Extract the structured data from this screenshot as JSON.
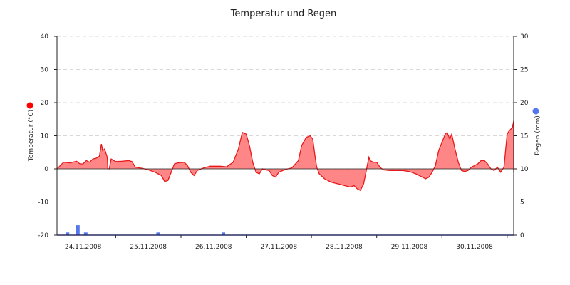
{
  "colors": {
    "temperature_line": "#e8191a",
    "temperature_fill": "#ff8080",
    "temperature_marker": "#ff0000",
    "rain_bar": "#5577ee",
    "rain_marker": "#5577ee",
    "baseline": "#2b2f66",
    "grid": "#d9d9d9"
  },
  "icons": {
    "temperature_legend": "red-dot-icon",
    "rain_legend": "blue-dot-icon"
  },
  "chart_data": {
    "type": "line",
    "title": "Temperatur und Regen",
    "xlabel": "",
    "ylabel": "Temperatur (°C)",
    "ylabel_right": "Regen (mm)",
    "ylim": [
      -20,
      40
    ],
    "ylim_right": [
      0,
      30
    ],
    "yticks": [
      "40",
      "30",
      "20",
      "10",
      "0",
      "-10",
      "-20"
    ],
    "yticks_right": [
      "30",
      "25",
      "20",
      "15",
      "10",
      "5",
      "0"
    ],
    "xlim_days": [
      -0.4,
      6.6
    ],
    "x_tick_labels": [
      "24.11.2008",
      "25.11.2008",
      "26.11.2008",
      "27.11.2008",
      "28.11.2008",
      "29.11.2008",
      "30.11.2008"
    ],
    "grid": true,
    "series": [
      {
        "name": "Temperatur (°C)",
        "kind": "area",
        "points": [
          [
            -0.4,
            0.0
          ],
          [
            -0.35,
            1.0
          ],
          [
            -0.3,
            2.0
          ],
          [
            -0.2,
            1.8
          ],
          [
            -0.1,
            2.3
          ],
          [
            -0.05,
            1.5
          ],
          [
            0.0,
            1.5
          ],
          [
            0.05,
            2.5
          ],
          [
            0.1,
            2.0
          ],
          [
            0.15,
            3.0
          ],
          [
            0.2,
            3.2
          ],
          [
            0.25,
            3.8
          ],
          [
            0.28,
            7.5
          ],
          [
            0.3,
            5.5
          ],
          [
            0.33,
            6.0
          ],
          [
            0.37,
            3.5
          ],
          [
            0.38,
            0.0
          ],
          [
            0.4,
            0.0
          ],
          [
            0.43,
            3.0
          ],
          [
            0.5,
            2.2
          ],
          [
            0.6,
            2.3
          ],
          [
            0.7,
            2.5
          ],
          [
            0.75,
            2.2
          ],
          [
            0.8,
            0.5
          ],
          [
            0.9,
            0.2
          ],
          [
            1.0,
            -0.3
          ],
          [
            1.1,
            -1.0
          ],
          [
            1.2,
            -2.0
          ],
          [
            1.25,
            -3.8
          ],
          [
            1.3,
            -3.5
          ],
          [
            1.35,
            -1.0
          ],
          [
            1.4,
            1.5
          ],
          [
            1.45,
            1.8
          ],
          [
            1.55,
            2.0
          ],
          [
            1.6,
            1.0
          ],
          [
            1.65,
            -1.0
          ],
          [
            1.7,
            -2.0
          ],
          [
            1.75,
            -0.5
          ],
          [
            1.85,
            0.3
          ],
          [
            1.95,
            0.8
          ],
          [
            2.1,
            0.8
          ],
          [
            2.2,
            0.6
          ],
          [
            2.3,
            2.0
          ],
          [
            2.38,
            6.0
          ],
          [
            2.44,
            11.0
          ],
          [
            2.5,
            10.5
          ],
          [
            2.55,
            7.0
          ],
          [
            2.6,
            2.0
          ],
          [
            2.65,
            -1.0
          ],
          [
            2.7,
            -1.5
          ],
          [
            2.75,
            0.0
          ],
          [
            2.8,
            -0.3
          ],
          [
            2.85,
            -0.5
          ],
          [
            2.9,
            -2.0
          ],
          [
            2.95,
            -2.5
          ],
          [
            3.0,
            -1.0
          ],
          [
            3.1,
            -0.2
          ],
          [
            3.2,
            0.3
          ],
          [
            3.3,
            2.5
          ],
          [
            3.35,
            7.0
          ],
          [
            3.42,
            9.5
          ],
          [
            3.48,
            10.0
          ],
          [
            3.52,
            9.0
          ],
          [
            3.55,
            4.5
          ],
          [
            3.58,
            0.5
          ],
          [
            3.62,
            -1.5
          ],
          [
            3.7,
            -3.0
          ],
          [
            3.8,
            -4.0
          ],
          [
            3.9,
            -4.5
          ],
          [
            4.0,
            -5.0
          ],
          [
            4.1,
            -5.5
          ],
          [
            4.15,
            -5.0
          ],
          [
            4.2,
            -6.0
          ],
          [
            4.25,
            -6.5
          ],
          [
            4.3,
            -4.5
          ],
          [
            4.35,
            0.5
          ],
          [
            4.38,
            3.5
          ],
          [
            4.4,
            2.5
          ],
          [
            4.45,
            2.0
          ],
          [
            4.5,
            2.0
          ],
          [
            4.55,
            0.5
          ],
          [
            4.6,
            -0.3
          ],
          [
            4.7,
            -0.5
          ],
          [
            4.8,
            -0.5
          ],
          [
            4.9,
            -0.5
          ],
          [
            5.0,
            -0.8
          ],
          [
            5.1,
            -1.5
          ],
          [
            5.15,
            -2.0
          ],
          [
            5.2,
            -2.5
          ],
          [
            5.25,
            -3.0
          ],
          [
            5.3,
            -2.5
          ],
          [
            5.35,
            -1.0
          ],
          [
            5.4,
            1.0
          ],
          [
            5.45,
            5.5
          ],
          [
            5.5,
            8.0
          ],
          [
            5.55,
            10.5
          ],
          [
            5.58,
            11.0
          ],
          [
            5.62,
            9.0
          ],
          [
            5.65,
            10.5
          ],
          [
            5.7,
            6.0
          ],
          [
            5.75,
            2.0
          ],
          [
            5.8,
            -0.5
          ],
          [
            5.85,
            -0.8
          ],
          [
            5.9,
            -0.5
          ],
          [
            5.95,
            0.5
          ],
          [
            6.0,
            1.0
          ],
          [
            6.05,
            1.5
          ],
          [
            6.1,
            2.5
          ],
          [
            6.15,
            2.5
          ],
          [
            6.2,
            1.5
          ],
          [
            6.25,
            0.0
          ],
          [
            6.3,
            -0.5
          ],
          [
            6.35,
            0.5
          ],
          [
            6.4,
            -1.0
          ],
          [
            6.45,
            0.5
          ],
          [
            6.5,
            10.5
          ],
          [
            6.53,
            11.5
          ],
          [
            6.58,
            12.5
          ],
          [
            6.62,
            14.5
          ],
          [
            6.65,
            13.5
          ],
          [
            6.68,
            10.0
          ],
          [
            6.72,
            6.0
          ],
          [
            6.78,
            2.5
          ],
          [
            6.85,
            1.5
          ],
          [
            6.9,
            0.5
          ],
          [
            6.95,
            -0.5
          ],
          [
            7.0,
            -0.5
          ],
          [
            7.05,
            -1.0
          ]
        ]
      },
      {
        "name": "Regen (mm)",
        "kind": "bar",
        "axis": "right",
        "points": [
          [
            -0.24,
            0.4
          ],
          [
            -0.08,
            1.5
          ],
          [
            0.04,
            0.4
          ],
          [
            1.15,
            0.4
          ],
          [
            2.15,
            0.4
          ]
        ]
      }
    ]
  }
}
